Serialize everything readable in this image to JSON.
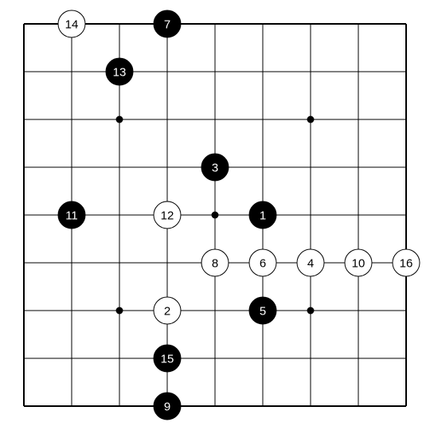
{
  "board": {
    "size": 9,
    "star_points": [
      [
        2,
        2
      ],
      [
        6,
        2
      ],
      [
        4,
        4
      ],
      [
        2,
        6
      ],
      [
        6,
        6
      ]
    ]
  },
  "stones": [
    {
      "num": "1",
      "color": "black",
      "col": 5,
      "row": 4
    },
    {
      "num": "2",
      "color": "white",
      "col": 3,
      "row": 6
    },
    {
      "num": "3",
      "color": "black",
      "col": 4,
      "row": 3
    },
    {
      "num": "4",
      "color": "white",
      "col": 6,
      "row": 5
    },
    {
      "num": "5",
      "color": "black",
      "col": 5,
      "row": 6
    },
    {
      "num": "6",
      "color": "white",
      "col": 5,
      "row": 5
    },
    {
      "num": "7",
      "color": "black",
      "col": 3,
      "row": 0
    },
    {
      "num": "8",
      "color": "white",
      "col": 4,
      "row": 5
    },
    {
      "num": "9",
      "color": "black",
      "col": 3,
      "row": 8
    },
    {
      "num": "10",
      "color": "white",
      "col": 7,
      "row": 5
    },
    {
      "num": "11",
      "color": "black",
      "col": 1,
      "row": 4
    },
    {
      "num": "12",
      "color": "white",
      "col": 3,
      "row": 4
    },
    {
      "num": "13",
      "color": "black",
      "col": 2,
      "row": 1
    },
    {
      "num": "14",
      "color": "white",
      "col": 1,
      "row": 0
    },
    {
      "num": "15",
      "color": "black",
      "col": 3,
      "row": 7
    },
    {
      "num": "16",
      "color": "white",
      "col": 8,
      "row": 5
    }
  ],
  "colors": {
    "black_stone": "#000000",
    "white_stone": "#ffffff",
    "line": "#000000"
  }
}
